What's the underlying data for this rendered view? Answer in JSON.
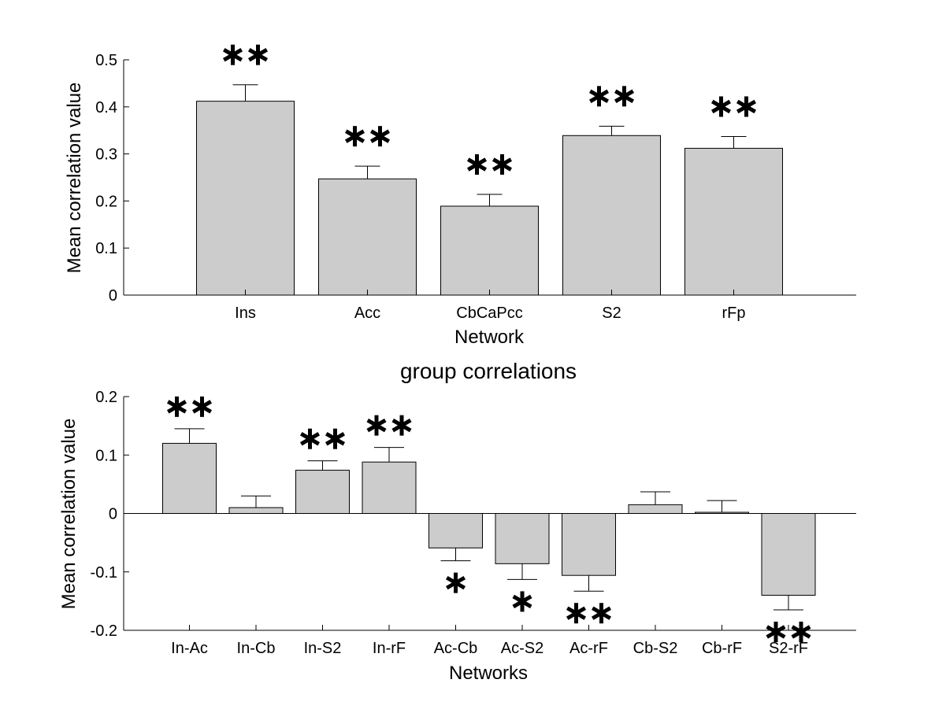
{
  "chart_data": [
    {
      "type": "bar",
      "title": "",
      "xlabel": "Network",
      "ylabel": "Mean correlation value",
      "categories": [
        "Ins",
        "Acc",
        "CbCaPcc",
        "S2",
        "rFp"
      ],
      "values": [
        0.412,
        0.247,
        0.189,
        0.339,
        0.312
      ],
      "errors": [
        0.035,
        0.027,
        0.025,
        0.02,
        0.025
      ],
      "significance": [
        "**",
        "**",
        "**",
        "**",
        "**"
      ],
      "ylim": [
        0,
        0.5
      ],
      "yticks": [
        0,
        0.1,
        0.2,
        0.3,
        0.4,
        0.5
      ],
      "ytick_labels": [
        "0",
        "0.1",
        "0.2",
        "0.3",
        "0.4",
        "0.5"
      ],
      "xlim": [
        -0.5,
        5.5
      ],
      "bar_color": "#cccccc",
      "grid": false
    },
    {
      "type": "bar",
      "title": "group correlations",
      "xlabel": "Networks",
      "ylabel": "Mean correlation value",
      "categories": [
        "In-Ac",
        "In-Cb",
        "In-S2",
        "In-rF",
        "Ac-Cb",
        "Ac-S2",
        "Ac-rF",
        "Cb-S2",
        "Cb-rF",
        "S2-rF"
      ],
      "values": [
        0.12,
        0.01,
        0.074,
        0.088,
        -0.059,
        -0.086,
        -0.106,
        0.015,
        0.002,
        -0.14
      ],
      "errors": [
        0.025,
        0.02,
        0.016,
        0.025,
        0.022,
        0.027,
        0.027,
        0.022,
        0.02,
        0.025
      ],
      "significance": [
        "**",
        "",
        "**",
        "**",
        "*",
        "*",
        "**",
        "",
        "",
        "**"
      ],
      "ylim": [
        -0.2,
        0.2
      ],
      "yticks": [
        -0.2,
        -0.1,
        0,
        0.1,
        0.2
      ],
      "ytick_labels": [
        "-0.2",
        "-0.1",
        "0",
        "0.1",
        "0.2"
      ],
      "xlim": [
        0,
        12
      ],
      "bar_color": "#cccccc",
      "grid": false
    }
  ]
}
